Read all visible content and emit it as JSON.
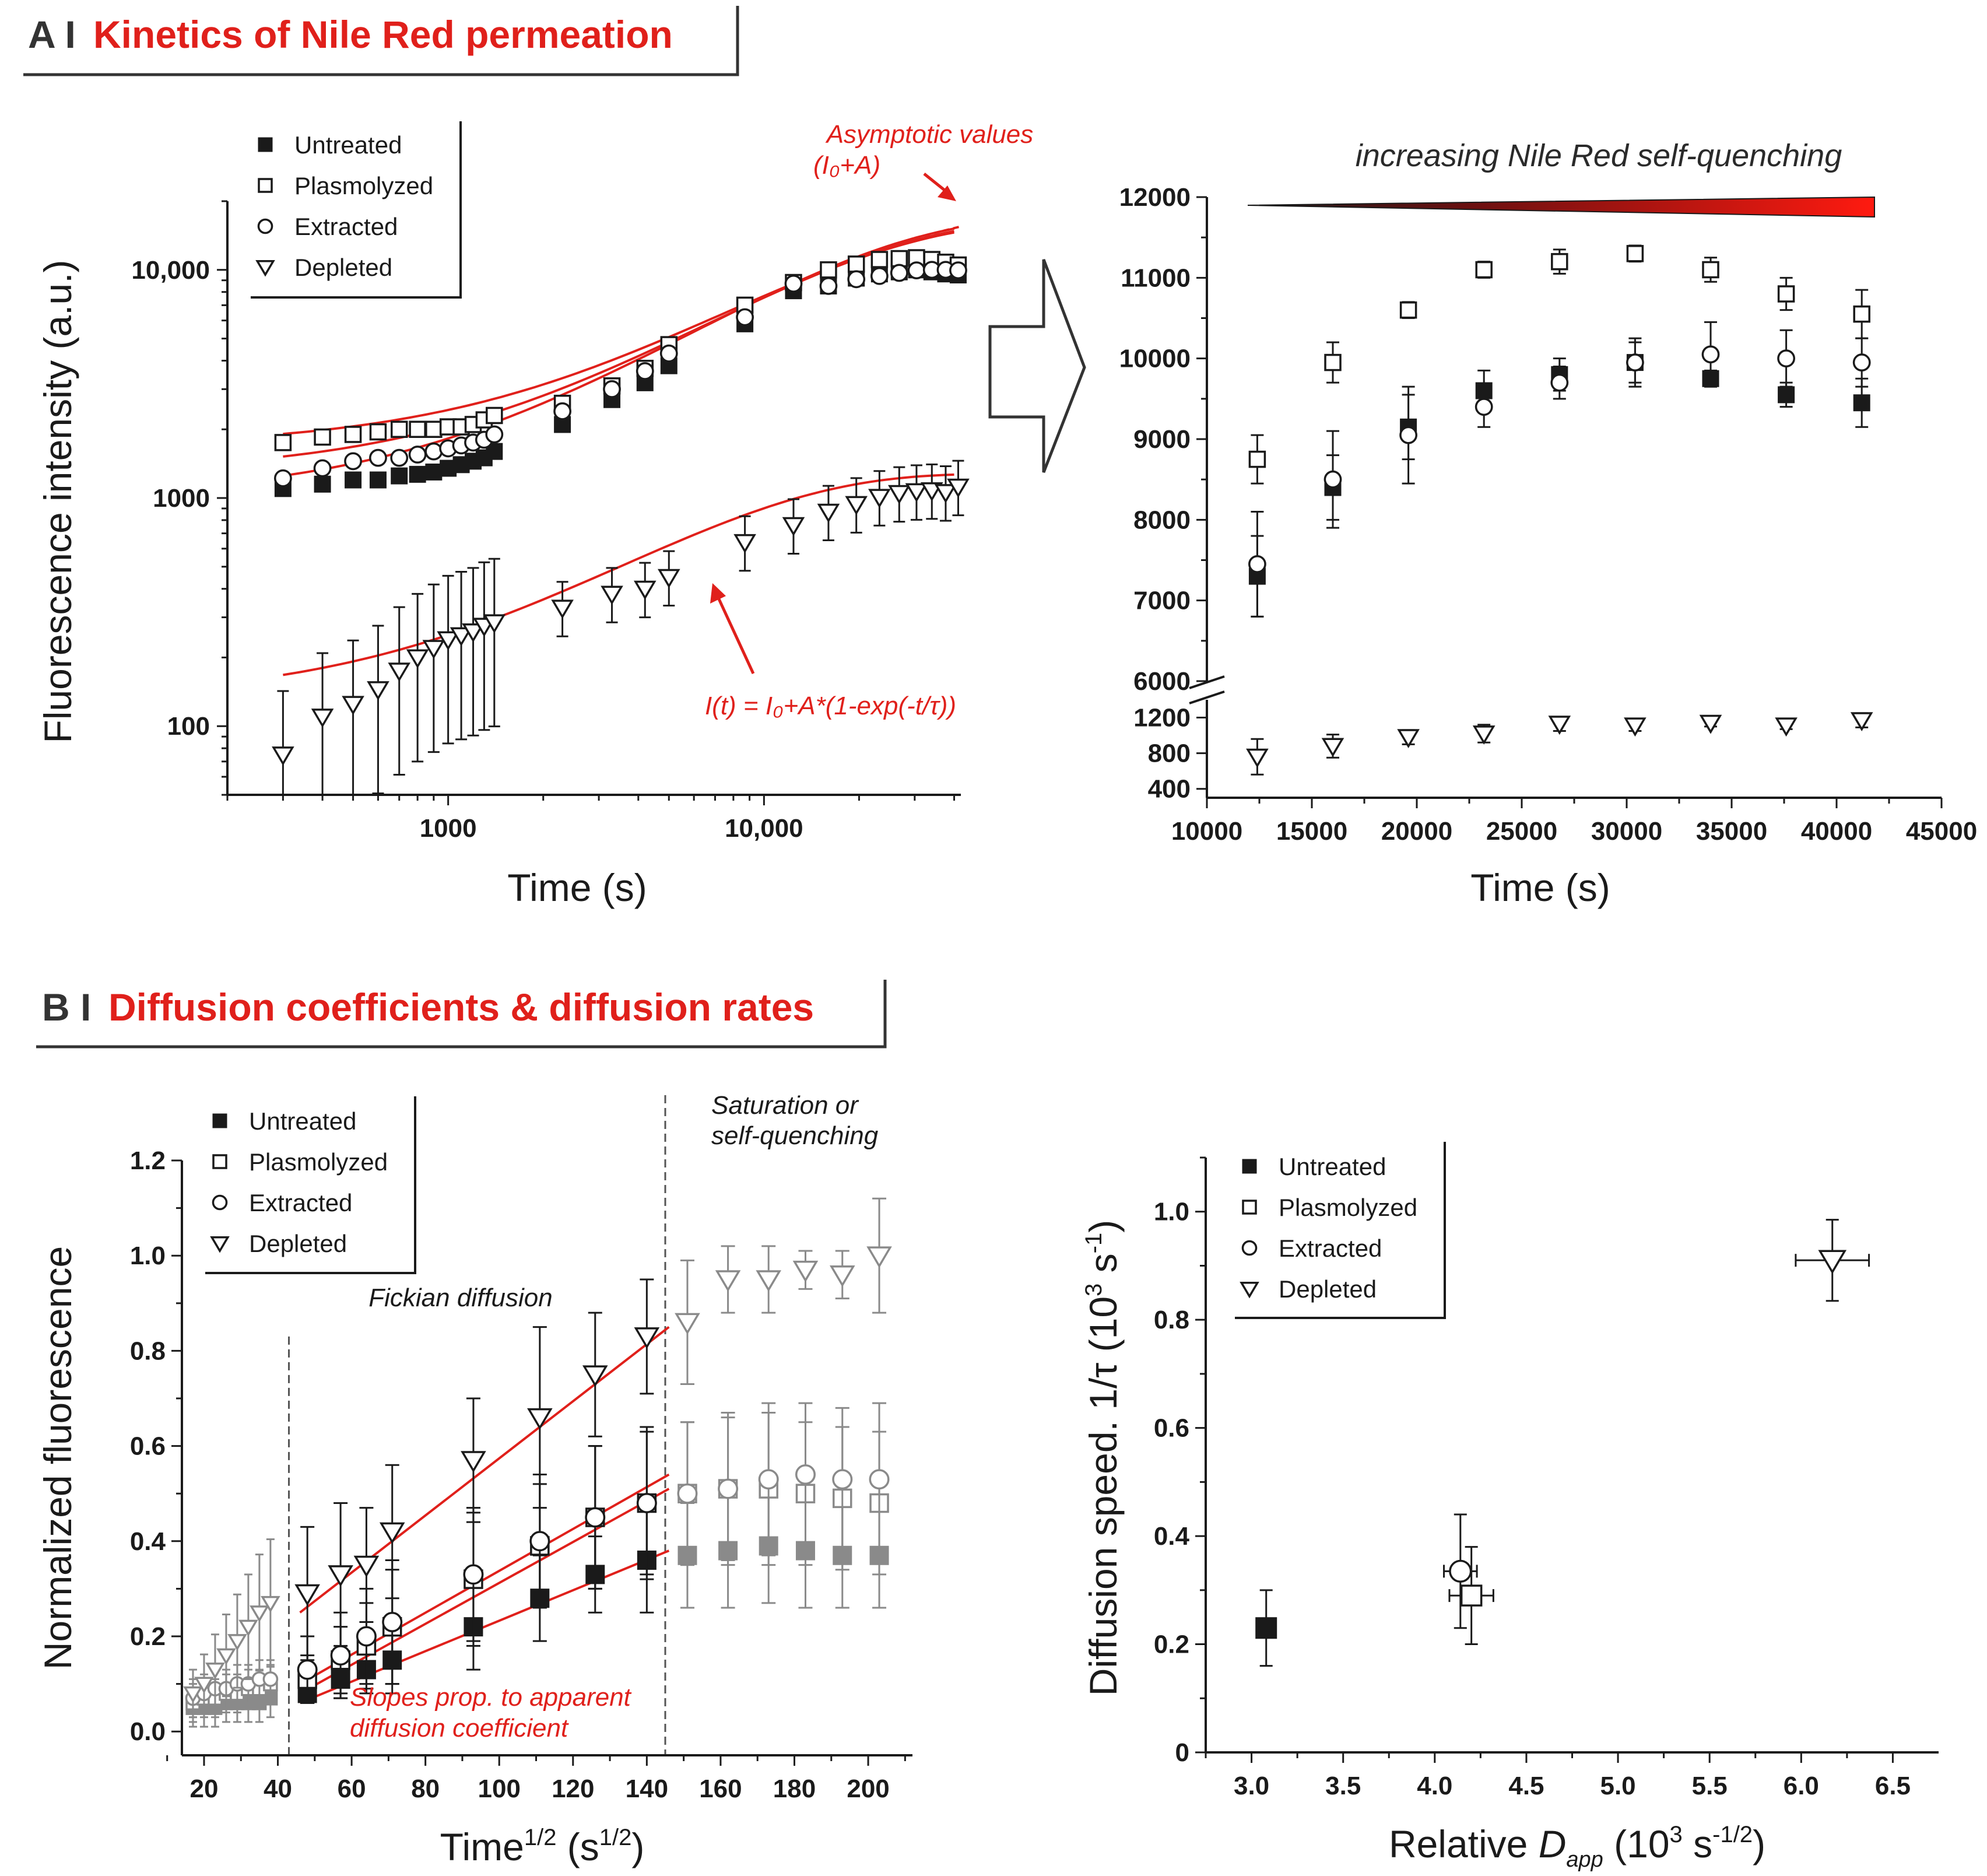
{
  "colors": {
    "red": "#e0201b",
    "black": "#1a1a1a",
    "gray": "#8a8a8a"
  },
  "panelA": {
    "letter": "A I",
    "title": "Kinetics of Nile Red permeation",
    "arrow_shape": "right-arrow-outline"
  },
  "panelB": {
    "letter": "B I",
    "title": "Diffusion coefficients & diffusion rates"
  },
  "legend": [
    "Untreated",
    "Plasmolyzed",
    "Extracted",
    "Depleted"
  ],
  "chart_data": [
    {
      "id": "A-left",
      "type": "scatter",
      "xscale": "log",
      "yscale": "log",
      "xlabel": "Time (s)",
      "ylabel": "Fluorescence intensity (a.u.)",
      "xlim": [
        200,
        42000
      ],
      "ylim": [
        50,
        20000
      ],
      "xticks": [
        {
          "v": 1000,
          "label": "1000"
        },
        {
          "v": 10000,
          "label": "10,000"
        }
      ],
      "yticks": [
        {
          "v": 100,
          "label": "100"
        },
        {
          "v": 1000,
          "label": "1000"
        },
        {
          "v": 10000,
          "label": "10,000"
        }
      ],
      "annotations": {
        "asymptote": "Asymptotic values",
        "asymptote_sub": "(I₀+A)",
        "fit": "I(t) = I₀+A*(1-exp(-t/τ))"
      },
      "series": [
        {
          "name": "Untreated",
          "x": [
            300,
            400,
            500,
            600,
            700,
            800,
            900,
            1000,
            1100,
            1200,
            1300,
            1400,
            2300,
            3300,
            4200,
            5000,
            8700,
            12400,
            16000,
            19600,
            23200,
            26800,
            30400,
            34000,
            37600,
            41200
          ],
          "y": [
            1100,
            1150,
            1200,
            1200,
            1250,
            1270,
            1300,
            1350,
            1400,
            1450,
            1500,
            1600,
            2100,
            2700,
            3200,
            3800,
            5800,
            8100,
            8500,
            9200,
            9600,
            9800,
            10000,
            9800,
            9600,
            9500
          ]
        },
        {
          "name": "Plasmolyzed",
          "x": [
            300,
            400,
            500,
            600,
            700,
            800,
            900,
            1000,
            1100,
            1200,
            1300,
            1400,
            2300,
            3300,
            4200,
            5000,
            8700,
            12400,
            16000,
            19600,
            23200,
            26800,
            30400,
            34000,
            37600,
            41200
          ],
          "y": [
            1750,
            1850,
            1900,
            1950,
            2000,
            2000,
            2000,
            2050,
            2050,
            2100,
            2200,
            2300,
            2600,
            3100,
            3700,
            4700,
            7000,
            8800,
            10000,
            10600,
            11100,
            11200,
            11300,
            11100,
            10800,
            10500
          ]
        },
        {
          "name": "Extracted",
          "x": [
            300,
            400,
            500,
            600,
            700,
            800,
            900,
            1000,
            1100,
            1200,
            1300,
            1400,
            2300,
            3300,
            4200,
            5000,
            8700,
            12400,
            16000,
            19600,
            23200,
            26800,
            30400,
            34000,
            37600,
            41200
          ],
          "y": [
            1220,
            1350,
            1450,
            1500,
            1500,
            1550,
            1600,
            1650,
            1700,
            1750,
            1800,
            1900,
            2400,
            3000,
            3600,
            4300,
            6200,
            8700,
            8500,
            9100,
            9400,
            9700,
            9950,
            10000,
            10000,
            9950
          ]
        },
        {
          "name": "Depleted",
          "x": [
            300,
            400,
            500,
            600,
            700,
            800,
            900,
            1000,
            1100,
            1200,
            1300,
            1400,
            2300,
            3300,
            4200,
            5000,
            8700,
            12400,
            16000,
            19600,
            23200,
            26800,
            30400,
            34000,
            37600,
            41200
          ],
          "y": [
            75,
            110,
            125,
            145,
            175,
            200,
            220,
            240,
            250,
            260,
            275,
            285,
            330,
            380,
            400,
            450,
            640,
            760,
            870,
            940,
            1010,
            1050,
            1070,
            1080,
            1060,
            1120
          ]
        }
      ]
    },
    {
      "id": "A-right",
      "type": "scatter",
      "xlabel": "Time (s)",
      "xlim": [
        10000,
        45000
      ],
      "ylim_upper": [
        6000,
        12000
      ],
      "ylim_lower": [
        300,
        1400
      ],
      "xticks": [
        "10000",
        "15000",
        "20000",
        "25000",
        "30000",
        "35000",
        "40000",
        "45000"
      ],
      "yticks_upper": [
        "6000",
        "7000",
        "8000",
        "9000",
        "10000",
        "11000",
        "12000"
      ],
      "yticks_lower": [
        "400",
        "800",
        "1200"
      ],
      "annotation": "increasing Nile Red self-quenching",
      "series": [
        {
          "name": "Untreated",
          "x": [
            12400,
            16000,
            19600,
            23200,
            26800,
            30400,
            34000,
            37600,
            41200
          ],
          "y": [
            7300,
            8400,
            9150,
            9600,
            9800,
            9950,
            9750,
            9550,
            9450
          ],
          "err": [
            500,
            400,
            400,
            250,
            200,
            250,
            100,
            150,
            300
          ]
        },
        {
          "name": "Plasmolyzed",
          "x": [
            12400,
            16000,
            19600,
            23200,
            26800,
            30400,
            34000,
            37600,
            41200
          ],
          "y": [
            8750,
            9950,
            10600,
            11100,
            11200,
            11300,
            11100,
            10800,
            10550
          ],
          "err": [
            300,
            250,
            100,
            100,
            150,
            100,
            150,
            200,
            300
          ]
        },
        {
          "name": "Extracted",
          "x": [
            12400,
            16000,
            19600,
            23200,
            26800,
            30400,
            34000,
            37600,
            41200
          ],
          "y": [
            7450,
            8500,
            9050,
            9400,
            9700,
            9950,
            10050,
            10000,
            9950
          ],
          "err": [
            650,
            600,
            600,
            250,
            200,
            300,
            400,
            350,
            300
          ]
        },
        {
          "name": "Depleted",
          "x": [
            12400,
            16000,
            19600,
            23200,
            26800,
            30400,
            34000,
            37600,
            41200
          ],
          "y": [
            760,
            880,
            980,
            1020,
            1130,
            1110,
            1140,
            1110,
            1170
          ],
          "err": [
            200,
            130,
            80,
            100,
            80,
            60,
            40,
            40,
            80
          ]
        }
      ]
    },
    {
      "id": "B-left",
      "type": "scatter",
      "xlabel": "Time¹ᐟ² (s¹ᐟ²)",
      "xlabel_main": "Time",
      "xlabel_sup": "1/2",
      "xlabel_unit_open": " (s",
      "xlabel_unit_sup": "1/2",
      "xlabel_unit_close": ")",
      "ylabel": "Normalized fluorescence",
      "xlim": [
        14,
        212
      ],
      "ylim": [
        -0.05,
        1.2
      ],
      "xticks": [
        "20",
        "40",
        "60",
        "80",
        "100",
        "120",
        "140",
        "160",
        "180",
        "200"
      ],
      "yticks": [
        "0.0",
        "0.2",
        "0.4",
        "0.6",
        "0.8",
        "1.0",
        "1.2"
      ],
      "annotations": {
        "fickian": "Fickian diffusion",
        "saturation1": "Saturation or",
        "saturation2": "self-quenching",
        "slopes1": "Slopes prop. to apparent",
        "slopes2": "diffusion coefficient"
      },
      "regions": {
        "fickian_start": 43,
        "fickian_end": 145
      },
      "series": [
        {
          "name": "Untreated",
          "x": [
            48,
            57,
            64,
            71,
            93,
            111,
            126,
            140,
            151,
            162,
            173,
            183,
            193,
            203
          ],
          "y": [
            0.08,
            0.11,
            0.13,
            0.15,
            0.22,
            0.28,
            0.33,
            0.36,
            0.37,
            0.38,
            0.39,
            0.38,
            0.37,
            0.37
          ],
          "err": [
            0.02,
            0.04,
            0.05,
            0.07,
            0.09,
            0.09,
            0.08,
            0.11,
            0.11,
            0.12,
            0.12,
            0.12,
            0.11,
            0.11
          ]
        },
        {
          "name": "Plasmolyzed",
          "x": [
            48,
            57,
            64,
            71,
            93,
            111,
            126,
            140,
            151,
            162,
            173,
            183,
            193,
            203
          ],
          "y": [
            0.11,
            0.15,
            0.18,
            0.22,
            0.32,
            0.39,
            0.45,
            0.48,
            0.5,
            0.51,
            0.51,
            0.5,
            0.49,
            0.48
          ],
          "err": [
            0.05,
            0.07,
            0.09,
            0.12,
            0.14,
            0.13,
            0.15,
            0.15,
            0.15,
            0.15,
            0.16,
            0.15,
            0.15,
            0.15
          ]
        },
        {
          "name": "Extracted",
          "x": [
            48,
            57,
            64,
            71,
            93,
            111,
            126,
            140,
            151,
            162,
            173,
            183,
            193,
            203
          ],
          "y": [
            0.13,
            0.16,
            0.2,
            0.23,
            0.33,
            0.4,
            0.45,
            0.48,
            0.5,
            0.51,
            0.53,
            0.54,
            0.53,
            0.53
          ],
          "err": [
            0.07,
            0.09,
            0.1,
            0.13,
            0.14,
            0.14,
            0.15,
            0.16,
            0.15,
            0.16,
            0.16,
            0.15,
            0.15,
            0.16
          ]
        },
        {
          "name": "Depleted",
          "x": [
            48,
            57,
            64,
            71,
            93,
            111,
            126,
            140,
            151,
            162,
            173,
            183,
            193,
            203
          ],
          "y": [
            0.29,
            0.33,
            0.35,
            0.42,
            0.57,
            0.66,
            0.75,
            0.83,
            0.86,
            0.95,
            0.95,
            0.97,
            0.96,
            1.0
          ],
          "err": [
            0.14,
            0.15,
            0.12,
            0.14,
            0.13,
            0.19,
            0.13,
            0.12,
            0.13,
            0.07,
            0.07,
            0.04,
            0.05,
            0.12
          ]
        }
      ],
      "early_series": [
        {
          "name": "Untreated",
          "x": [
            17,
            20,
            23,
            26,
            29,
            32,
            35,
            38
          ],
          "y": [
            0.05,
            0.05,
            0.05,
            0.06,
            0.06,
            0.06,
            0.06,
            0.07
          ]
        },
        {
          "name": "Plasmolyzed",
          "x": [
            17,
            20,
            23,
            26,
            29,
            32,
            35,
            38
          ],
          "y": [
            0.06,
            0.07,
            0.07,
            0.08,
            0.08,
            0.09,
            0.09,
            0.1
          ]
        },
        {
          "name": "Extracted",
          "x": [
            17,
            20,
            23,
            26,
            29,
            32,
            35,
            38
          ],
          "y": [
            0.07,
            0.08,
            0.09,
            0.09,
            0.1,
            0.1,
            0.11,
            0.11
          ]
        },
        {
          "name": "Depleted",
          "x": [
            17,
            20,
            23,
            26,
            29,
            32,
            35,
            38
          ],
          "y": [
            0.08,
            0.1,
            0.13,
            0.16,
            0.19,
            0.22,
            0.25,
            0.27
          ]
        }
      ],
      "fits": [
        {
          "name": "Untreated",
          "x": [
            46,
            146
          ],
          "y": [
            0.06,
            0.38
          ]
        },
        {
          "name": "Plasmolyzed",
          "x": [
            46,
            146
          ],
          "y": [
            0.08,
            0.51
          ]
        },
        {
          "name": "Extracted",
          "x": [
            46,
            146
          ],
          "y": [
            0.1,
            0.54
          ]
        },
        {
          "name": "Depleted",
          "x": [
            46,
            146
          ],
          "y": [
            0.25,
            0.85
          ]
        }
      ]
    },
    {
      "id": "B-right",
      "type": "scatter",
      "xlabel_main": "Relative ",
      "xlabel_D": "D",
      "xlabel_sub": "app",
      "xlabel_unit": " (10",
      "xlabel_unit_sup1": "3",
      "xlabel_unit_s": " s",
      "xlabel_unit_sup2": "-1/2",
      "xlabel_close": ")",
      "ylabel_main": "Diffusion speed. 1/τ (10",
      "ylabel_sup1": "3",
      "ylabel_mid": " s",
      "ylabel_sup2": "-1",
      "ylabel_close": ")",
      "xlim": [
        2.75,
        6.75
      ],
      "ylim": [
        0,
        1.1
      ],
      "xticks": [
        "3.0",
        "3.5",
        "4.0",
        "4.5",
        "5.0",
        "5.5",
        "6.0",
        "6.5"
      ],
      "yticks": [
        "0",
        "0.2",
        "0.4",
        "0.6",
        "0.8",
        "1.0"
      ],
      "series": [
        {
          "name": "Untreated",
          "x": 3.08,
          "y": 0.23,
          "xerr": 0.04,
          "yerr": 0.07
        },
        {
          "name": "Plasmolyzed",
          "x": 4.2,
          "y": 0.29,
          "xerr": 0.12,
          "yerr": 0.09
        },
        {
          "name": "Extracted",
          "x": 4.14,
          "y": 0.335,
          "xerr": 0.09,
          "yerr": 0.105
        },
        {
          "name": "Depleted",
          "x": 6.17,
          "y": 0.91,
          "xerr": 0.2,
          "yerr": 0.075
        }
      ]
    }
  ]
}
